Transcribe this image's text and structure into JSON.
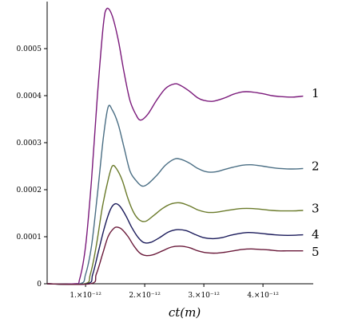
{
  "chart_data": {
    "type": "line",
    "title": "",
    "xlabel": "ct(m)",
    "ylabel": "",
    "xlim": [
      3.5e-13,
      4.85e-12
    ],
    "ylim": [
      0,
      0.0006
    ],
    "x_ticks": [
      {
        "value": 1e-12,
        "label": "1.×10⁻¹²"
      },
      {
        "value": 2e-12,
        "label": "2.×10⁻¹²"
      },
      {
        "value": 3e-12,
        "label": "3.×10⁻¹²"
      },
      {
        "value": 4e-12,
        "label": "4.×10⁻¹²"
      }
    ],
    "y_ticks": [
      {
        "value": 0,
        "label": "0"
      },
      {
        "value": 0.0001,
        "label": "0.0001"
      },
      {
        "value": 0.0002,
        "label": "0.0002"
      },
      {
        "value": 0.0003,
        "label": "0.0003"
      },
      {
        "value": 0.0004,
        "label": "0.0004"
      },
      {
        "value": 0.0005,
        "label": "0.0005"
      }
    ],
    "grid": false,
    "legend": "none; curves labelled at right end",
    "series": [
      {
        "label": "1",
        "color": "#7b1a7b",
        "label_value": 0.000405,
        "x": [
          3.5e-13,
          8.2e-13,
          9e-13,
          1e-12,
          1.1e-12,
          1.2e-12,
          1.3e-12,
          1.36e-12,
          1.45e-12,
          1.55e-12,
          1.65e-12,
          1.75e-12,
          1.85e-12,
          1.93e-12,
          2.05e-12,
          2.2e-12,
          2.35e-12,
          2.5e-12,
          2.6e-12,
          2.75e-12,
          2.9e-12,
          3e-12,
          3.15e-12,
          3.35e-12,
          3.5e-12,
          3.65e-12,
          3.8e-12,
          4e-12,
          4.15e-12,
          4.3e-12,
          4.5e-12,
          4.68e-12
        ],
        "y": [
          0,
          0,
          1e-05,
          8e-05,
          0.00022,
          0.0004,
          0.00055,
          0.000585,
          0.00057,
          0.00052,
          0.00045,
          0.00039,
          0.00036,
          0.000348,
          0.00036,
          0.00039,
          0.000415,
          0.000425,
          0.000422,
          0.00041,
          0.000395,
          0.00039,
          0.000388,
          0.000395,
          0.000403,
          0.000408,
          0.000408,
          0.000404,
          0.0004,
          0.000398,
          0.000397,
          0.000399
        ]
      },
      {
        "label": "2",
        "color": "#4a6e84",
        "label_value": 0.00025,
        "x": [
          3.5e-13,
          9e-13,
          1e-12,
          1.1e-12,
          1.2e-12,
          1.3e-12,
          1.38e-12,
          1.45e-12,
          1.55e-12,
          1.65e-12,
          1.75e-12,
          1.85e-12,
          1.95e-12,
          2.05e-12,
          2.2e-12,
          2.35e-12,
          2.5e-12,
          2.6e-12,
          2.75e-12,
          2.9e-12,
          3.05e-12,
          3.2e-12,
          3.35e-12,
          3.5e-12,
          3.65e-12,
          3.8e-12,
          4e-12,
          4.15e-12,
          4.3e-12,
          4.5e-12,
          4.68e-12
        ],
        "y": [
          0,
          0,
          2e-05,
          8e-05,
          0.00019,
          0.00031,
          0.000375,
          0.00037,
          0.00034,
          0.00029,
          0.00024,
          0.00022,
          0.000208,
          0.000212,
          0.00023,
          0.000252,
          0.000265,
          0.000265,
          0.000257,
          0.000245,
          0.000238,
          0.000238,
          0.000243,
          0.000248,
          0.000252,
          0.000253,
          0.00025,
          0.000247,
          0.000245,
          0.000244,
          0.000245
        ]
      },
      {
        "label": "3",
        "color": "#6a7a2a",
        "label_value": 0.00016,
        "x": [
          3.5e-13,
          9.8e-13,
          1.08e-12,
          1.18e-12,
          1.28e-12,
          1.38e-12,
          1.45e-12,
          1.52e-12,
          1.62e-12,
          1.72e-12,
          1.82e-12,
          1.92e-12,
          2.02e-12,
          2.15e-12,
          2.3e-12,
          2.45e-12,
          2.6e-12,
          2.75e-12,
          2.9e-12,
          3.05e-12,
          3.2e-12,
          3.35e-12,
          3.5e-12,
          3.65e-12,
          3.8e-12,
          4e-12,
          4.15e-12,
          4.3e-12,
          4.5e-12,
          4.68e-12
        ],
        "y": [
          0,
          0,
          2e-05,
          8e-05,
          0.00016,
          0.00022,
          0.00025,
          0.000245,
          0.00022,
          0.00018,
          0.00015,
          0.000135,
          0.000133,
          0.000145,
          0.00016,
          0.00017,
          0.000172,
          0.000166,
          0.000157,
          0.000152,
          0.000152,
          0.000155,
          0.000158,
          0.00016,
          0.00016,
          0.000158,
          0.000156,
          0.000155,
          0.000155,
          0.000156
        ]
      },
      {
        "label": "4",
        "color": "#1a1a5a",
        "label_value": 0.000105,
        "x": [
          3.5e-13,
          1.02e-12,
          1.12e-12,
          1.22e-12,
          1.32e-12,
          1.42e-12,
          1.5e-12,
          1.58e-12,
          1.68e-12,
          1.78e-12,
          1.88e-12,
          1.98e-12,
          2.1e-12,
          2.25e-12,
          2.4e-12,
          2.55e-12,
          2.7e-12,
          2.85e-12,
          3e-12,
          3.15e-12,
          3.3e-12,
          3.45e-12,
          3.6e-12,
          3.75e-12,
          3.9e-12,
          4.05e-12,
          4.2e-12,
          4.35e-12,
          4.5e-12,
          4.68e-12
        ],
        "y": [
          0,
          0,
          2e-05,
          7e-05,
          0.00012,
          0.000158,
          0.00017,
          0.000165,
          0.000145,
          0.00012,
          0.0001,
          8.8e-05,
          8.8e-05,
          9.8e-05,
          0.00011,
          0.000115,
          0.000113,
          0.000105,
          9.8e-05,
          9.6e-05,
          9.8e-05,
          0.000103,
          0.000107,
          0.000109,
          0.000108,
          0.000106,
          0.000104,
          0.000103,
          0.000103,
          0.000104
        ]
      },
      {
        "label": "5",
        "color": "#6a1a3a",
        "label_value": 6.8e-05,
        "x": [
          3.5e-13,
          1.08e-12,
          1.18e-12,
          1.28e-12,
          1.38e-12,
          1.48e-12,
          1.55e-12,
          1.62e-12,
          1.72e-12,
          1.82e-12,
          1.92e-12,
          2.02e-12,
          2.15e-12,
          2.3e-12,
          2.45e-12,
          2.6e-12,
          2.75e-12,
          2.9e-12,
          3.05e-12,
          3.2e-12,
          3.35e-12,
          3.5e-12,
          3.65e-12,
          3.8e-12,
          3.95e-12,
          4.1e-12,
          4.25e-12,
          4.4e-12,
          4.55e-12,
          4.68e-12
        ],
        "y": [
          0,
          0,
          2e-05,
          6e-05,
          0.0001,
          0.000118,
          0.00012,
          0.000115,
          0.0001,
          8e-05,
          6.5e-05,
          6e-05,
          6.2e-05,
          7e-05,
          7.8e-05,
          8e-05,
          7.7e-05,
          7e-05,
          6.6e-05,
          6.5e-05,
          6.7e-05,
          7e-05,
          7.3e-05,
          7.4e-05,
          7.3e-05,
          7.2e-05,
          7e-05,
          7e-05,
          7e-05,
          7e-05
        ]
      }
    ]
  }
}
